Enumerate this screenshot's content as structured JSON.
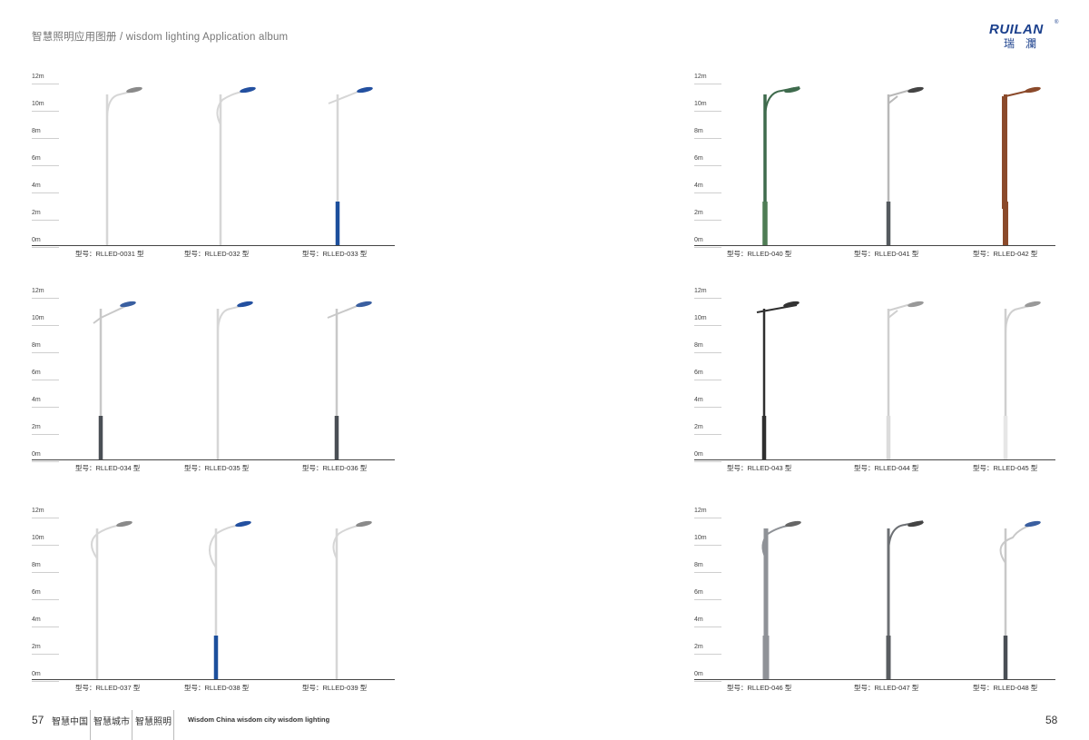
{
  "header": {
    "title": "智慧照明应用图册 / wisdom lighting Application album"
  },
  "logo": {
    "en": "RUILAN",
    "reg": "®",
    "cn": "瑞瀾"
  },
  "scale_labels": [
    "12m",
    "10m",
    "8m",
    "6m",
    "4m",
    "2m",
    "0m"
  ],
  "models": {
    "r1_left": [
      "型号：RLLED-0031 型",
      "型号：RLLED-032 型",
      "型号：RLLED-033 型"
    ],
    "r2_left": [
      "型号：RLLED-034 型",
      "型号：RLLED-035 型",
      "型号：RLLED-036 型"
    ],
    "r3_left": [
      "型号：RLLED-037 型",
      "型号：RLLED-038 型",
      "型号：RLLED-039 型"
    ],
    "r1_right": [
      "型号：RLLED-040 型",
      "型号：RLLED-041 型",
      "型号：RLLED-042 型"
    ],
    "r2_right": [
      "型号：RLLED-043 型",
      "型号：RLLED-044 型",
      "型号：RLLED-045 型"
    ],
    "r3_right": [
      "型号：RLLED-046 型",
      "型号：RLLED-047 型",
      "型号：RLLED-048 型"
    ]
  },
  "footer": {
    "page_left": "57",
    "page_right": "58",
    "cn_items": [
      "智慧中国",
      "智慧城市",
      "智慧照明"
    ],
    "en_text": "Wisdom China  wisdom city  wisdom lighting"
  },
  "colors": {
    "brand": "#1a3f8c",
    "pole_silver": "#d9d9d9",
    "pole_blue": "#1c4f9c",
    "pole_green": "#3f6b4d",
    "pole_rust": "#8b4a2b",
    "pole_dark": "#3a3a3a"
  }
}
